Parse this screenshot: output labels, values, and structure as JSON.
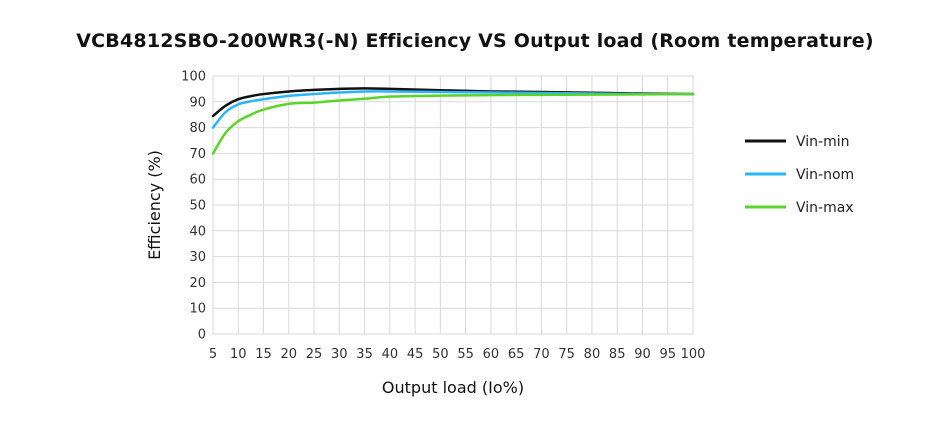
{
  "chart_data": {
    "type": "line",
    "title": "VCB4812SBO-200WR3(-N) Efficiency VS Output load (Room temperature)",
    "xlabel": "Output load (Io%)",
    "ylabel": "Efficiency (%)",
    "xlim": [
      5,
      100
    ],
    "ylim": [
      0,
      100
    ],
    "xticks": [
      5,
      10,
      15,
      20,
      25,
      30,
      35,
      40,
      45,
      50,
      55,
      60,
      65,
      70,
      75,
      80,
      85,
      90,
      95,
      100
    ],
    "yticks": [
      0,
      10,
      20,
      30,
      40,
      50,
      60,
      70,
      80,
      90,
      100
    ],
    "grid": true,
    "legend_position": "right",
    "series": [
      {
        "name": "Vin-min",
        "color": "#111111",
        "x": [
          5,
          7.5,
          10,
          12.5,
          15,
          20,
          25,
          30,
          35,
          40,
          50,
          60,
          70,
          80,
          90,
          100
        ],
        "y": [
          84.5,
          88.5,
          91,
          92.2,
          93,
          94,
          94.6,
          95,
          95.2,
          95,
          94.5,
          94,
          93.8,
          93.5,
          93.2,
          93
        ]
      },
      {
        "name": "Vin-nom",
        "color": "#29b6f6",
        "x": [
          5,
          7.5,
          10,
          12.5,
          15,
          20,
          25,
          30,
          35,
          40,
          50,
          60,
          70,
          80,
          90,
          100
        ],
        "y": [
          80,
          86,
          89,
          90.2,
          91,
          92.3,
          93,
          93.6,
          94,
          94,
          93.8,
          93.6,
          93.4,
          93.2,
          93,
          93
        ]
      },
      {
        "name": "Vin-max",
        "color": "#5bd42a",
        "x": [
          5,
          7.5,
          10,
          12.5,
          15,
          20,
          25,
          30,
          35,
          40,
          50,
          60,
          70,
          80,
          90,
          100
        ],
        "y": [
          70,
          78,
          82.5,
          85,
          87,
          89.2,
          89.7,
          90.5,
          91.2,
          92,
          92.4,
          92.6,
          92.7,
          92.8,
          92.9,
          93
        ]
      }
    ]
  }
}
